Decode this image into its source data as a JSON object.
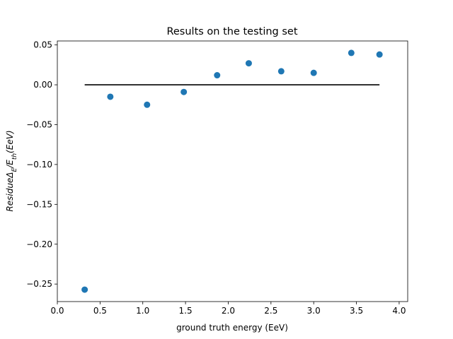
{
  "chart_data": {
    "type": "scatter",
    "title": "Results on the testing set",
    "xlabel": "ground truth energy (EeV)",
    "ylabel_main": "Residue",
    "ylabel_parts": [
      {
        "text": "ResidueΔ",
        "sub": false
      },
      {
        "text": "E",
        "sub": true
      },
      {
        "text": "/E",
        "sub": false
      },
      {
        "text": "th",
        "sub": true
      },
      {
        "text": "(EeV)",
        "sub": false
      }
    ],
    "xlim": [
      0.0,
      4.1
    ],
    "ylim": [
      -0.272,
      0.055
    ],
    "x_ticks": [
      0.0,
      0.5,
      1.0,
      1.5,
      2.0,
      2.5,
      3.0,
      3.5,
      4.0
    ],
    "x_tick_labels": [
      "0.0",
      "0.5",
      "1.0",
      "1.5",
      "2.0",
      "2.5",
      "3.0",
      "3.5",
      "4.0"
    ],
    "y_ticks": [
      0.05,
      0.0,
      -0.05,
      -0.1,
      -0.15,
      -0.2,
      -0.25
    ],
    "y_tick_labels": [
      "0.05",
      "0.00",
      "−0.05",
      "−0.10",
      "−0.15",
      "−0.20",
      "−0.25"
    ],
    "grid": false,
    "series": [
      {
        "type": "scatter",
        "color": "#1f77b4",
        "x": [
          0.32,
          0.62,
          1.05,
          1.48,
          1.87,
          2.24,
          2.62,
          3.0,
          3.44,
          3.77
        ],
        "y": [
          -0.257,
          -0.015,
          -0.025,
          -0.009,
          0.012,
          0.027,
          0.017,
          0.015,
          0.04,
          0.038
        ]
      },
      {
        "type": "line",
        "color": "#000000",
        "x": [
          0.32,
          3.77
        ],
        "y": [
          0.0,
          0.0
        ]
      }
    ]
  }
}
